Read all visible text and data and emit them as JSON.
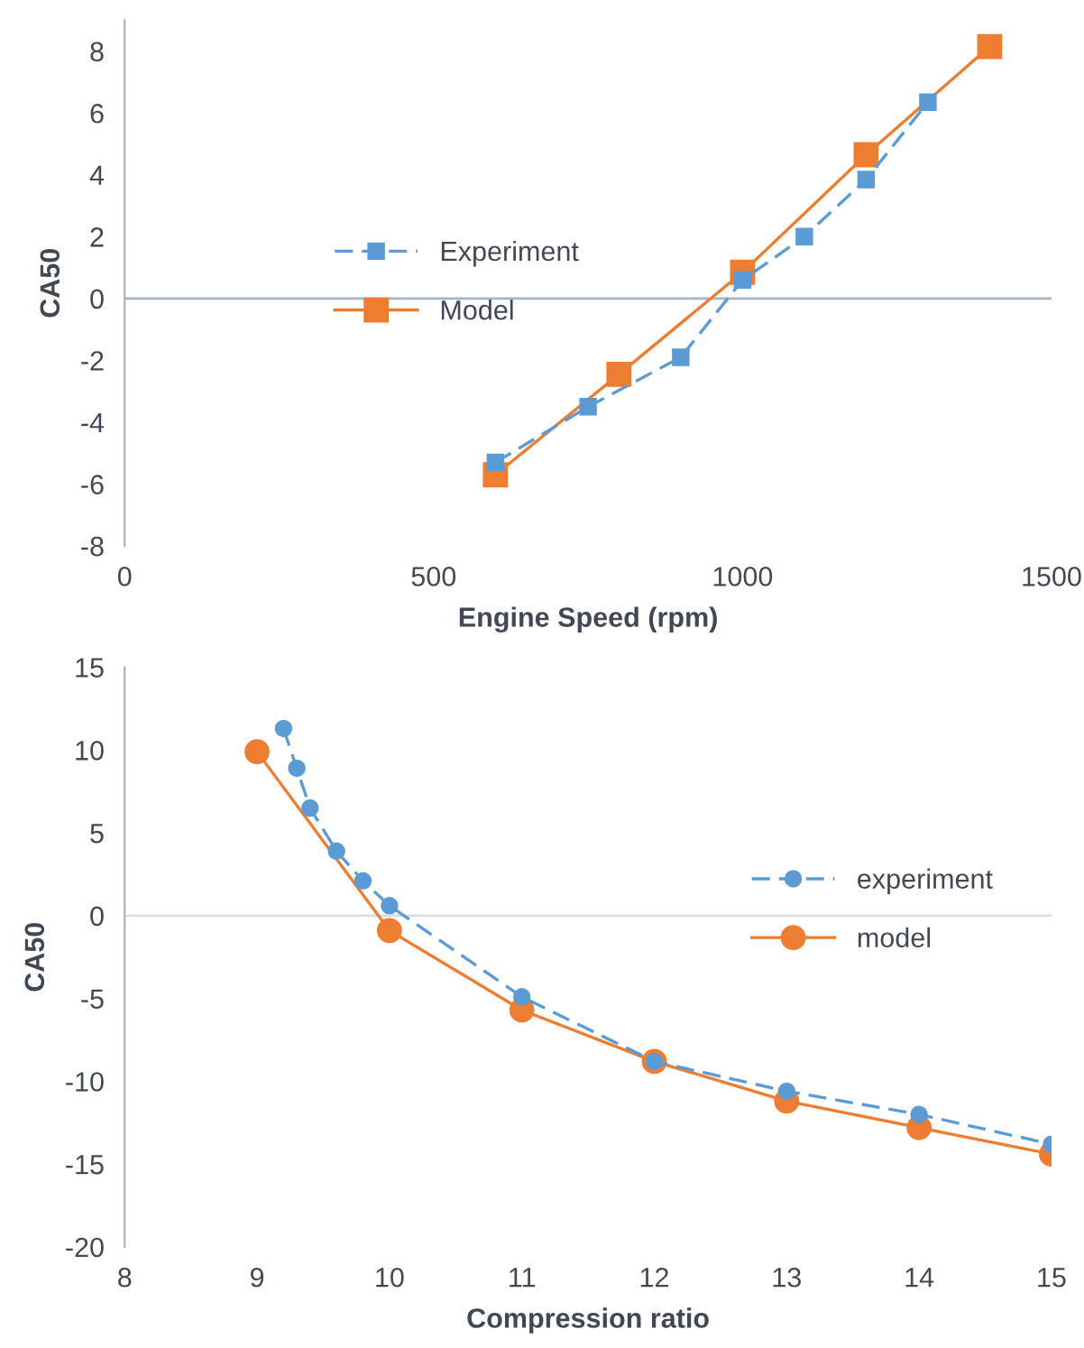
{
  "chart_data": [
    {
      "type": "line",
      "xlabel": "Engine Speed (rpm)",
      "ylabel": "CA50",
      "xlim": [
        0,
        1500
      ],
      "xticks": [
        0,
        500,
        1000,
        1500
      ],
      "ylim": [
        -8,
        9
      ],
      "yticks": [
        -8,
        -6,
        -4,
        -2,
        0,
        2,
        4,
        6,
        8
      ],
      "marker": "square",
      "legend": "left",
      "grid": false,
      "ref_lines": [
        {
          "axis": "y",
          "value": 0,
          "color": "#a6b4c8"
        }
      ],
      "series": [
        {
          "name": "Experiment",
          "color": "#5b9bd5",
          "line_style": "dashed",
          "x": [
            600,
            750,
            900,
            1000,
            1100,
            1200,
            1300
          ],
          "values": [
            -5.3,
            -3.5,
            -1.9,
            0.6,
            2.0,
            3.85,
            6.35
          ]
        },
        {
          "name": "Model",
          "color": "#ed7d31",
          "line_style": "solid",
          "x": [
            600,
            800,
            1000,
            1200,
            1400
          ],
          "values": [
            -5.7,
            -2.45,
            0.85,
            4.65,
            8.15
          ]
        }
      ]
    },
    {
      "type": "line",
      "xlabel": "Compression ratio",
      "ylabel": "CA50",
      "xlim": [
        8,
        15
      ],
      "xticks": [
        8,
        9,
        10,
        11,
        12,
        13,
        14,
        15
      ],
      "ylim": [
        -20,
        15
      ],
      "yticks": [
        -20,
        -15,
        -10,
        -5,
        0,
        5,
        10,
        15
      ],
      "marker": "circle",
      "legend": "right",
      "grid": false,
      "ref_lines": [
        {
          "axis": "y",
          "value": 0,
          "color": "#d9dde6"
        }
      ],
      "series": [
        {
          "name": "experiment",
          "color": "#5b9bd5",
          "line_style": "dashed",
          "x": [
            9.2,
            9.3,
            9.4,
            9.6,
            9.8,
            10,
            11,
            12,
            13,
            14,
            15
          ],
          "values": [
            11.3,
            8.9,
            6.5,
            3.9,
            2.1,
            0.6,
            -4.9,
            -8.8,
            -10.6,
            -12.0,
            -13.8
          ]
        },
        {
          "name": "model",
          "color": "#ed7d31",
          "line_style": "solid",
          "x": [
            9,
            10,
            11,
            12,
            13,
            14,
            15
          ],
          "values": [
            9.9,
            -0.9,
            -5.7,
            -8.8,
            -11.2,
            -12.8,
            -14.4
          ]
        }
      ]
    }
  ]
}
